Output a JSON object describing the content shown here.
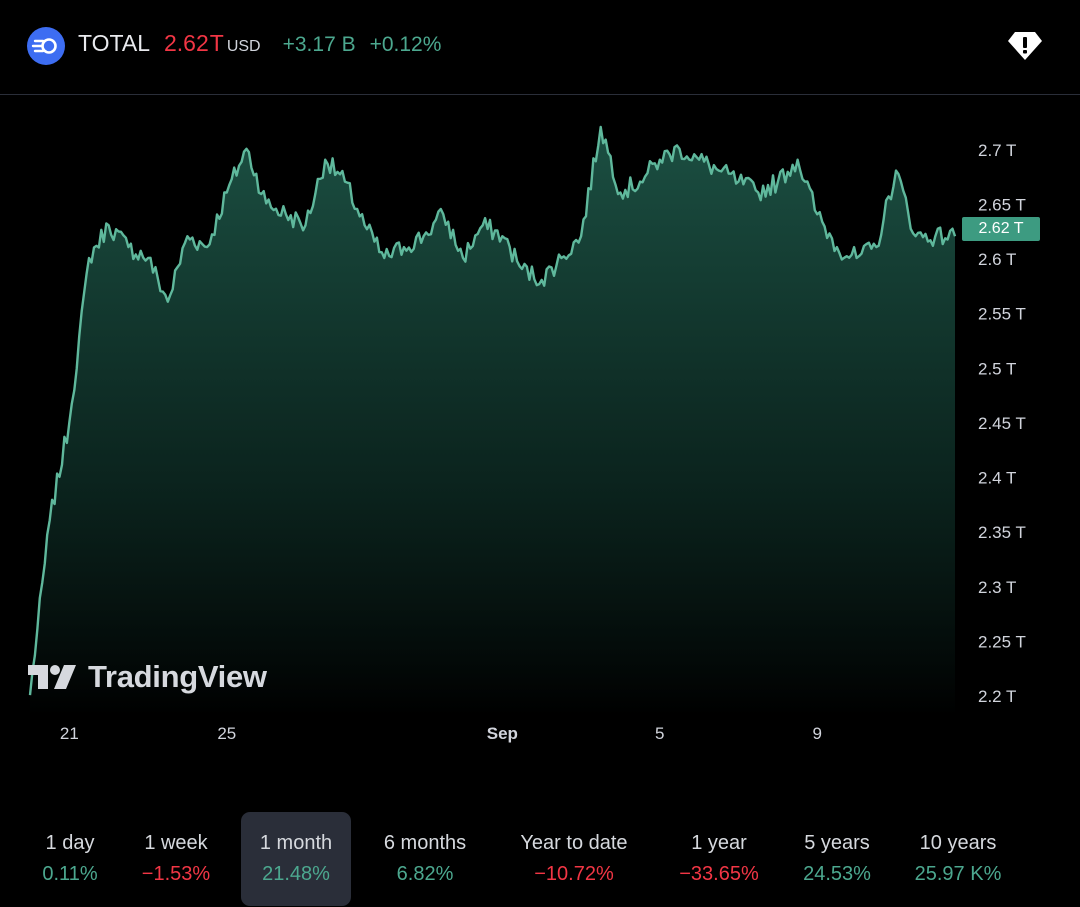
{
  "header": {
    "symbol": "TOTAL",
    "price": "2.62",
    "price_suffix": "T",
    "currency": "USD",
    "change": "+3.17 B",
    "change_percent": "+0.12%",
    "icon": "crypto-market-cap-icon",
    "alert_icon": "alert-gem-icon"
  },
  "logo": {
    "text": "TradingView",
    "icon": "tradingview-logo-icon"
  },
  "colors": {
    "line": "#5fb89c",
    "fill_top": "#1a4a3e",
    "last_label": "#3d9b81",
    "positive": "#4ca88f",
    "negative": "#f23645"
  },
  "chart_data": {
    "type": "area",
    "x": [
      "Aug 20 00:00",
      "Aug 20 12:00",
      "Aug 21 00:00",
      "Aug 21 12:00",
      "Aug 22 00:00",
      "Aug 22 12:00",
      "Aug 23 00:00",
      "Aug 23 12:00",
      "Aug 24 00:00",
      "Aug 24 12:00",
      "Aug 25 00:00",
      "Aug 25 12:00",
      "Aug 26 00:00",
      "Aug 26 12:00",
      "Aug 27 00:00",
      "Aug 27 12:00",
      "Aug 28 00:00",
      "Aug 28 12:00",
      "Aug 29 00:00",
      "Aug 29 12:00",
      "Aug 30 00:00",
      "Aug 30 12:00",
      "Aug 31 00:00",
      "Aug 31 12:00",
      "Sep 1 00:00",
      "Sep 1 12:00",
      "Sep 2 00:00",
      "Sep 2 12:00",
      "Sep 3 00:00",
      "Sep 3 12:00",
      "Sep 4 00:00",
      "Sep 4 12:00",
      "Sep 5 00:00",
      "Sep 5 12:00",
      "Sep 6 00:00",
      "Sep 6 12:00",
      "Sep 7 00:00",
      "Sep 7 12:00",
      "Sep 8 00:00",
      "Sep 8 12:00",
      "Sep 9 00:00",
      "Sep 9 12:00",
      "Sep 10 00:00",
      "Sep 10 12:00",
      "Sep 11 00:00",
      "Sep 11 12:00",
      "Sep 12 00:00",
      "Sep 12 12:00"
    ],
    "values": [
      2.2,
      2.36,
      2.45,
      2.6,
      2.63,
      2.61,
      2.6,
      2.56,
      2.62,
      2.61,
      2.66,
      2.7,
      2.65,
      2.64,
      2.63,
      2.69,
      2.67,
      2.63,
      2.6,
      2.61,
      2.62,
      2.64,
      2.6,
      2.63,
      2.62,
      2.59,
      2.58,
      2.6,
      2.62,
      2.72,
      2.66,
      2.67,
      2.69,
      2.7,
      2.69,
      2.68,
      2.67,
      2.66,
      2.67,
      2.69,
      2.64,
      2.61,
      2.6,
      2.61,
      2.68,
      2.62,
      2.62,
      2.62
    ],
    "last_value_label": "2.62 T",
    "y_ticks": [
      "2.7 T",
      "2.65 T",
      "2.6 T",
      "2.55 T",
      "2.5 T",
      "2.45 T",
      "2.4 T",
      "2.35 T",
      "2.3 T",
      "2.25 T",
      "2.2 T"
    ],
    "y_tick_values": [
      2.7,
      2.65,
      2.6,
      2.55,
      2.5,
      2.45,
      2.4,
      2.35,
      2.3,
      2.25,
      2.2
    ],
    "x_ticks": [
      "21",
      "25",
      "Sep",
      "5",
      "9"
    ],
    "x_tick_positions": [
      "Aug 21 00:00",
      "Aug 25 00:00",
      "Sep 1 00:00",
      "Sep 5 00:00",
      "Sep 9 00:00"
    ],
    "ylim": [
      2.19,
      2.73
    ],
    "grid": false,
    "legend": "none"
  },
  "periods": [
    {
      "label": "1 day",
      "value": "0.11%",
      "trend": "pos",
      "active": false
    },
    {
      "label": "1 week",
      "value": "−1.53%",
      "trend": "neg",
      "active": false
    },
    {
      "label": "1 month",
      "value": "21.48%",
      "trend": "pos",
      "active": true
    },
    {
      "label": "6 months",
      "value": "6.82%",
      "trend": "pos",
      "active": false
    },
    {
      "label": "Year to date",
      "value": "−10.72%",
      "trend": "neg",
      "active": false
    },
    {
      "label": "1 year",
      "value": "−33.65%",
      "trend": "neg",
      "active": false
    },
    {
      "label": "5 years",
      "value": "24.53%",
      "trend": "pos",
      "active": false
    },
    {
      "label": "10 years",
      "value": "25.97 K%",
      "trend": "pos",
      "active": false
    }
  ]
}
